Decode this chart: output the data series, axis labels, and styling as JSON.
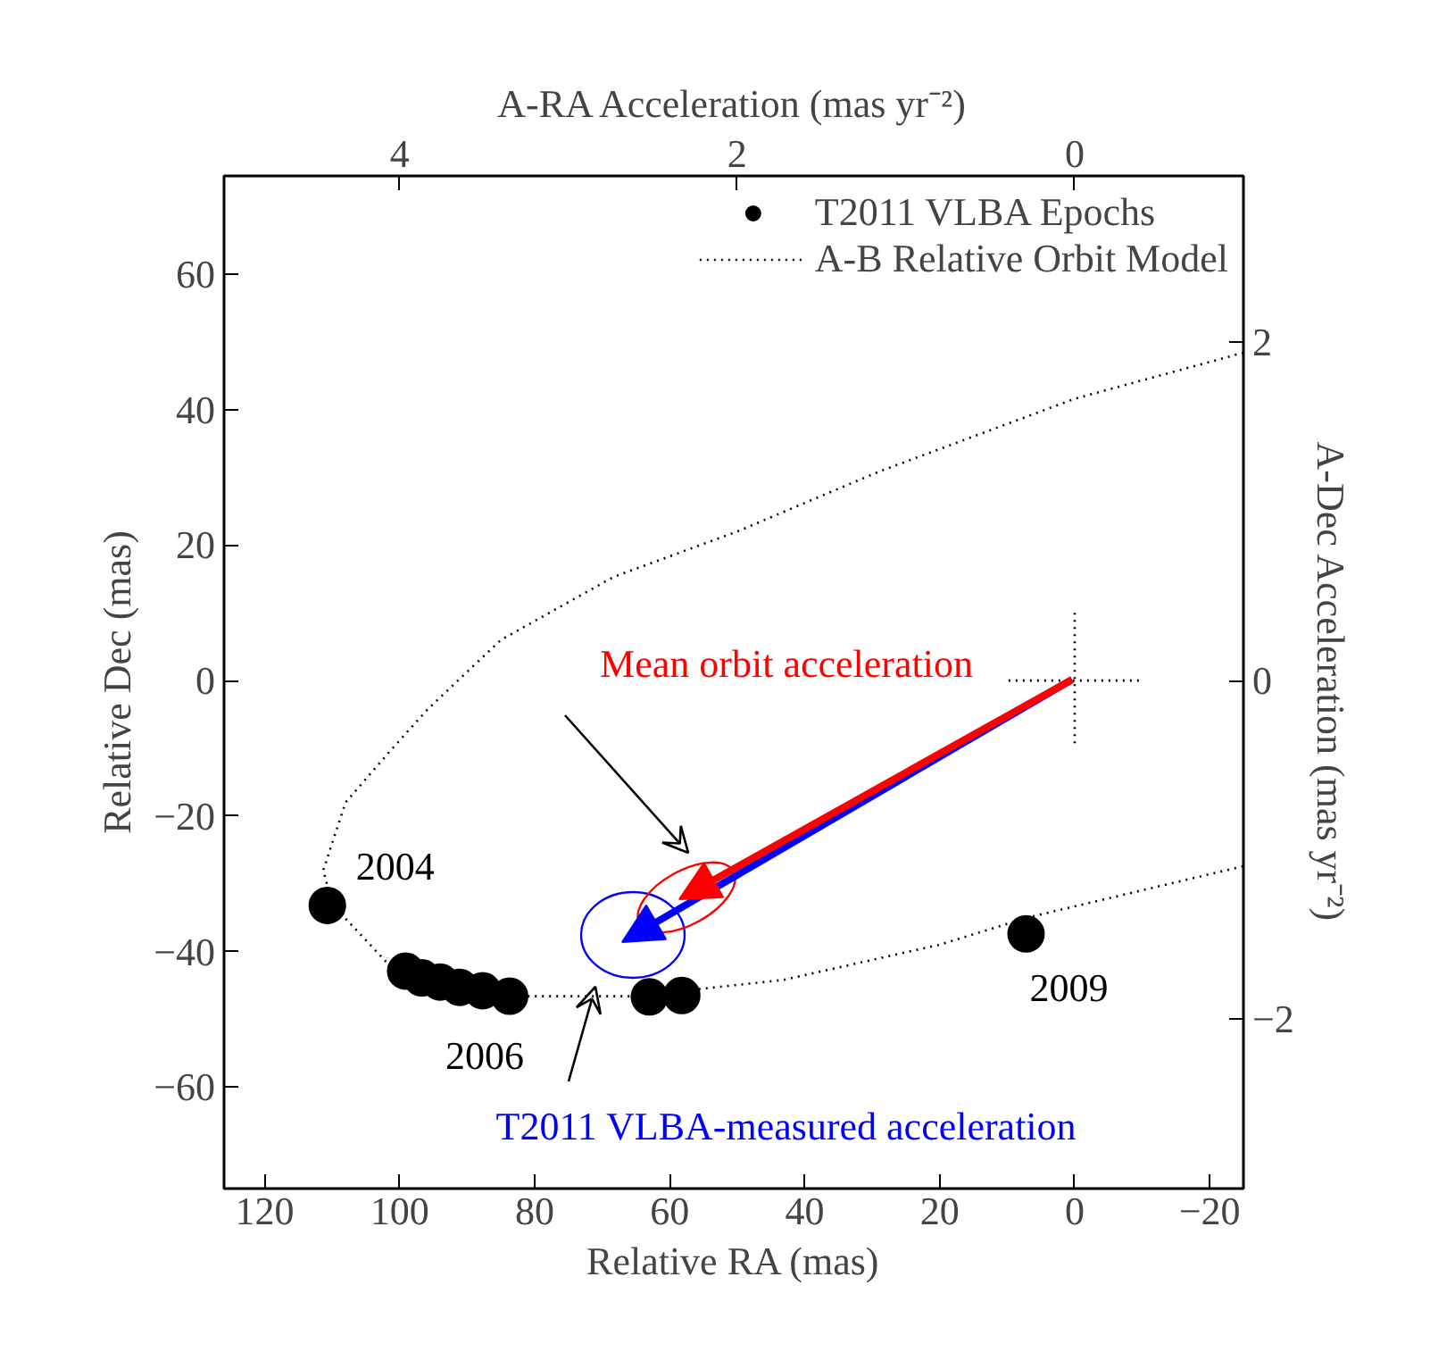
{
  "chart_data": {
    "type": "scatter",
    "xlabel": "Relative RA (mas)",
    "ylabel": "Relative Dec (mas)",
    "x2label": "A-RA Acceleration (mas yr⁻²)",
    "y2label": "A-Dec Acceleration (mas yr⁻²)",
    "xlim": [
      126,
      -25
    ],
    "ylim": [
      -75,
      74.5
    ],
    "x2lim": [
      5.04,
      -1.0
    ],
    "y2lim": [
      -3.0,
      2.98
    ],
    "xticks": [
      120,
      100,
      80,
      60,
      40,
      20,
      0,
      -20
    ],
    "yticks": [
      -60,
      -40,
      -20,
      0,
      20,
      40,
      60
    ],
    "x2ticks": [
      4,
      2,
      0
    ],
    "y2ticks": [
      -2,
      0,
      2
    ],
    "legend": "top right",
    "series": [
      {
        "name": "T2011 VLBA Epochs",
        "marker": "circle",
        "color": "#000000",
        "x": [
          110.7,
          99.1,
          96.7,
          94.0,
          91.1,
          87.7,
          83.7,
          63.0,
          58.2,
          7.2
        ],
        "values": [
          -33.2,
          -42.9,
          -43.9,
          -44.5,
          -45.3,
          -45.8,
          -46.6,
          -46.7,
          -46.5,
          -37.4
        ]
      },
      {
        "name": "A-B Relative Orbit Model",
        "type": "line",
        "line_style": "dotted",
        "color": "#000000",
        "x": [
          -25,
          0,
          29.1,
          50,
          68.3,
          85,
          95.8,
          101.5,
          108,
          111.3,
          110,
          100.7,
          81.3,
          65.4,
          43.2,
          20,
          7,
          -25
        ],
        "values": [
          48.4,
          41.6,
          30.8,
          22,
          15.3,
          6,
          -4.2,
          -10.5,
          -18,
          -28,
          -33,
          -42.9,
          -46.6,
          -46.6,
          -44.2,
          -39,
          -35,
          -27.4
        ]
      },
      {
        "type": "line",
        "line_style": "dotted",
        "color": "#000000",
        "x": [
          9.8,
          -9.8
        ],
        "values": [
          0,
          0
        ]
      },
      {
        "type": "line",
        "line_style": "dotted",
        "color": "#000000",
        "x": [
          0,
          0
        ],
        "values": [
          10,
          -10
        ]
      }
    ],
    "annotations": [
      {
        "text": "2004",
        "x": 110.7,
        "y": -33.2
      },
      {
        "text": "2006",
        "x": 83.7,
        "y": -46.6
      },
      {
        "text": "2009",
        "x": 7.2,
        "y": -37.4
      },
      "Mean orbit acceleration",
      "T2011 VLBA-measured acceleration"
    ]
  }
}
